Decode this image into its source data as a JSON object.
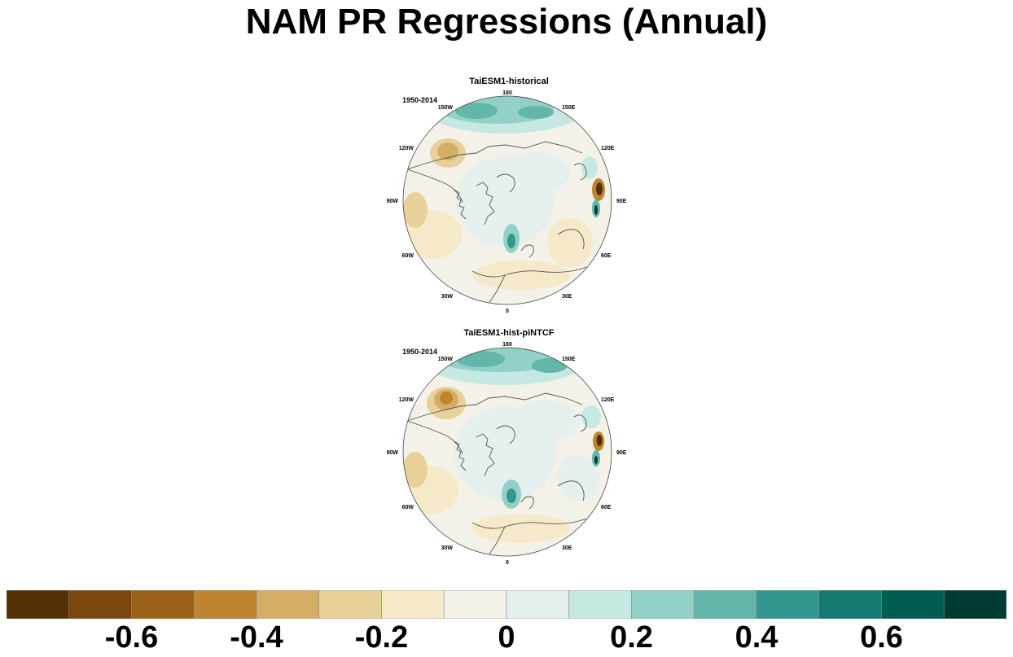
{
  "title": "NAM PR Regressions (Annual)",
  "panels": [
    {
      "title": "TaiESM1-historical",
      "period": "1950-2014"
    },
    {
      "title": "TaiESM1-hist-piNTCF",
      "period": "1950-2014"
    }
  ],
  "lon_labels": [
    "180",
    "150E",
    "120E",
    "90E",
    "60E",
    "30E",
    "0",
    "30W",
    "60W",
    "90W",
    "120W",
    "150W"
  ],
  "colorbar": {
    "colors": [
      "#543005",
      "#7a470e",
      "#9c6119",
      "#bf842f",
      "#d4ae66",
      "#e7d199",
      "#f5e9c9",
      "#f4f1e9",
      "#e4efee",
      "#c6e8e2",
      "#93d1c7",
      "#63b6aa",
      "#34978f",
      "#137870",
      "#005c50",
      "#003c30"
    ],
    "labels": [
      "-0.6",
      "-0.4",
      "-0.2",
      "0",
      "0.2",
      "0.4",
      "0.6"
    ]
  },
  "chart_data": [
    {
      "type": "heatmap",
      "title": "TaiESM1-historical",
      "annotation": "1950-2014",
      "projection": "north polar stereographic",
      "color_levels": [
        -0.7,
        -0.6,
        -0.5,
        -0.4,
        -0.3,
        -0.2,
        -0.1,
        0,
        0.1,
        0.2,
        0.3,
        0.4,
        0.5,
        0.6,
        0.7
      ]
    },
    {
      "type": "heatmap",
      "title": "TaiESM1-hist-piNTCF",
      "annotation": "1950-2014",
      "projection": "north polar stereographic",
      "color_levels": [
        -0.7,
        -0.6,
        -0.5,
        -0.4,
        -0.3,
        -0.2,
        -0.1,
        0,
        0.1,
        0.2,
        0.3,
        0.4,
        0.5,
        0.6,
        0.7
      ]
    }
  ]
}
